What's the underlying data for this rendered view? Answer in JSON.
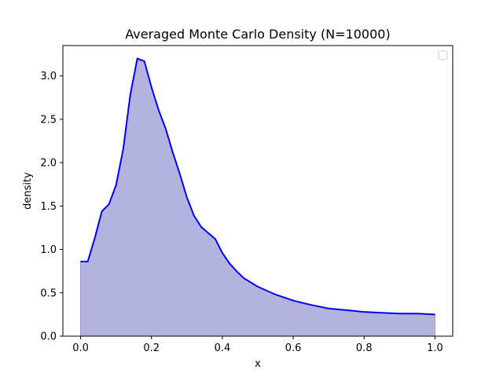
{
  "chart_data": {
    "type": "area",
    "title": "Averaged Monte Carlo Density (N=10000)",
    "xlabel": "x",
    "ylabel": "density",
    "xlim": [
      -0.05,
      1.05
    ],
    "ylim": [
      0,
      3.35
    ],
    "xticks": [
      "0.0",
      "0.2",
      "0.4",
      "0.6",
      "0.8",
      "1.0"
    ],
    "yticks": [
      "0.0",
      "0.5",
      "1.0",
      "1.5",
      "2.0",
      "2.5",
      "3.0"
    ],
    "grid": false,
    "legend": "top-right",
    "line_color": "#0000ff",
    "fill_color": "#b3b3de",
    "series": [
      {
        "x": [
          0.0,
          0.02,
          0.04,
          0.06,
          0.08,
          0.1,
          0.12,
          0.14,
          0.16,
          0.18,
          0.2,
          0.22,
          0.24,
          0.26,
          0.28,
          0.3,
          0.32,
          0.34,
          0.36,
          0.38,
          0.4,
          0.42,
          0.44,
          0.46,
          0.48,
          0.5,
          0.55,
          0.6,
          0.65,
          0.7,
          0.75,
          0.8,
          0.85,
          0.9,
          0.95,
          1.0
        ],
        "y": [
          0.86,
          0.86,
          1.13,
          1.44,
          1.52,
          1.74,
          2.15,
          2.78,
          3.2,
          3.17,
          2.87,
          2.61,
          2.39,
          2.12,
          1.87,
          1.6,
          1.39,
          1.26,
          1.19,
          1.12,
          0.96,
          0.84,
          0.75,
          0.67,
          0.62,
          0.57,
          0.48,
          0.41,
          0.36,
          0.32,
          0.3,
          0.28,
          0.27,
          0.26,
          0.26,
          0.25
        ]
      }
    ]
  }
}
